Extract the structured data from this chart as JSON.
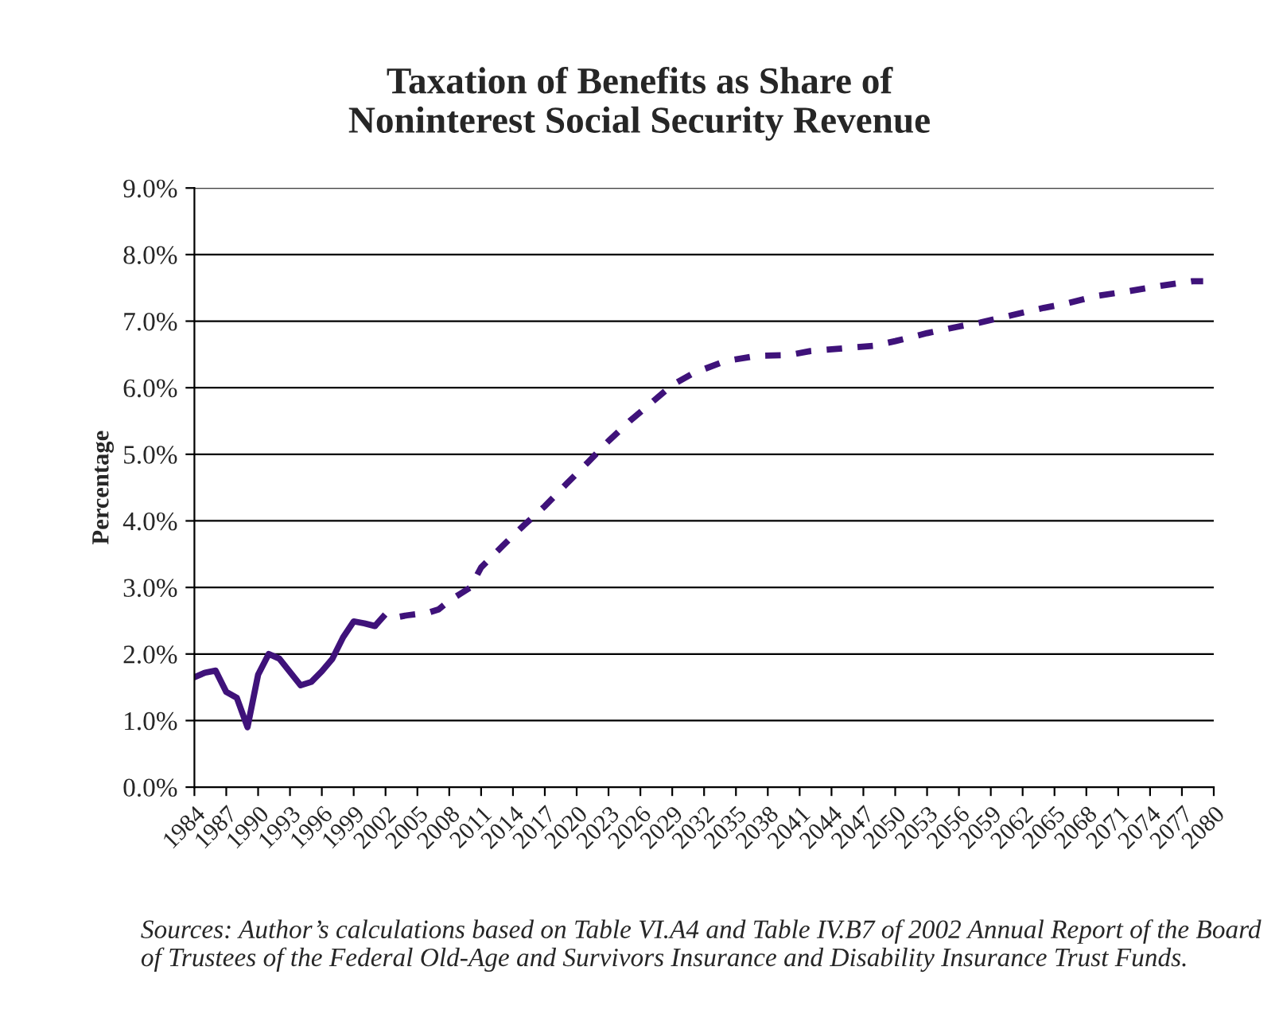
{
  "chart_data": {
    "type": "line",
    "title": "Taxation of Benefits as Share of\nNoninterest Social Security Revenue",
    "ylabel": "Percentage",
    "series": [
      {
        "color": "#3f127a",
        "line_style": "solid",
        "x": [
          1984,
          1985,
          1986,
          1987,
          1988,
          1989,
          1990,
          1991,
          1992,
          1993,
          1994,
          1995,
          1996,
          1997,
          1998,
          1999,
          2000,
          2001
        ],
        "values": [
          1.65,
          1.72,
          1.75,
          1.43,
          1.34,
          0.9,
          1.69,
          2.0,
          1.93,
          1.73,
          1.53,
          1.58,
          1.74,
          1.93,
          2.25,
          2.49,
          2.46,
          2.42
        ]
      },
      {
        "color": "#3f127a",
        "line_style": "dashed",
        "x": [
          2001,
          2002,
          2003,
          2004,
          2005,
          2006,
          2007,
          2008,
          2009,
          2010,
          2011,
          2013,
          2015,
          2017,
          2019,
          2021,
          2023,
          2025,
          2027,
          2029,
          2031,
          2034,
          2037,
          2040,
          2042,
          2045,
          2048,
          2050,
          2053,
          2056,
          2058,
          2061,
          2064,
          2066,
          2069,
          2072,
          2075,
          2078,
          2079
        ],
        "values": [
          2.42,
          2.6,
          2.55,
          2.58,
          2.6,
          2.62,
          2.67,
          2.8,
          2.9,
          3.0,
          3.3,
          3.62,
          3.93,
          4.22,
          4.55,
          4.87,
          5.2,
          5.5,
          5.77,
          6.04,
          6.22,
          6.4,
          6.48,
          6.49,
          6.55,
          6.59,
          6.63,
          6.7,
          6.82,
          6.92,
          6.98,
          7.09,
          7.2,
          7.26,
          7.38,
          7.45,
          7.53,
          7.6,
          7.6
        ]
      }
    ],
    "xlim": [
      1984,
      2080
    ],
    "xticks": [
      1984,
      1987,
      1990,
      1993,
      1996,
      1999,
      2002,
      2005,
      2008,
      2011,
      2014,
      2017,
      2020,
      2023,
      2026,
      2029,
      2032,
      2035,
      2038,
      2041,
      2044,
      2047,
      2050,
      2053,
      2056,
      2059,
      2062,
      2065,
      2068,
      2071,
      2074,
      2077,
      2080
    ],
    "ylim": [
      0,
      9
    ],
    "yticks": [
      {
        "value": 0,
        "label": "0.0%"
      },
      {
        "value": 1,
        "label": "1.0%"
      },
      {
        "value": 2,
        "label": "2.0%"
      },
      {
        "value": 3,
        "label": "3.0%"
      },
      {
        "value": 4,
        "label": "4.0%"
      },
      {
        "value": 5,
        "label": "5.0%"
      },
      {
        "value": 6,
        "label": "6.0%"
      },
      {
        "value": 7,
        "label": "7.0%"
      },
      {
        "value": 8,
        "label": "8.0%"
      },
      {
        "value": 9,
        "label": "9.0%"
      }
    ],
    "grid": "y",
    "legend": false,
    "marker": "none",
    "annotations": [
      "Sources: Author’s calculations based on Table VI.A4 and Table IV.B7 of 2002 Annual Report of the Board of Trustees of the Federal Old-Age and Survivors Insurance and Disability Insurance Trust Funds."
    ]
  }
}
